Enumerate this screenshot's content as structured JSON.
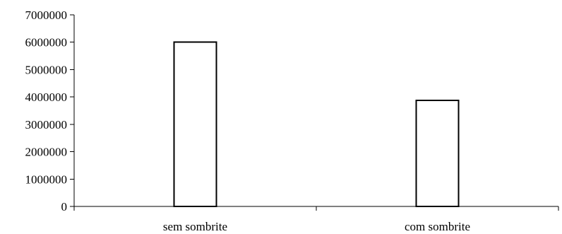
{
  "chart_data": {
    "type": "bar",
    "categories": [
      "sem sombrite",
      "com sombrite"
    ],
    "series": [
      {
        "values": [
          6000000,
          3870000
        ]
      }
    ],
    "title": "",
    "xlabel": "",
    "ylabel": "",
    "ylim": [
      0,
      7000000
    ],
    "yticks": [
      "0",
      "1000000",
      "2000000",
      "3000000",
      "4000000",
      "5000000",
      "6000000",
      "7000000"
    ],
    "grid": false,
    "legend": "none",
    "bar_fill": "#ffffff",
    "bar_edge": "#000000"
  }
}
